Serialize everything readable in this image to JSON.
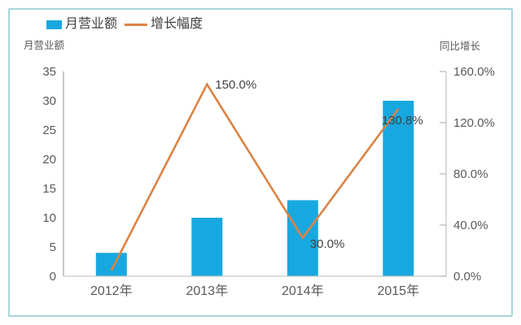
{
  "legend": {
    "items": [
      {
        "label": "月营业额",
        "swatch": "square",
        "color": "#18a8e0"
      },
      {
        "label": "增长幅度",
        "swatch": "line",
        "color": "#dc8345"
      }
    ]
  },
  "chart_data": {
    "type": "combo",
    "title": "",
    "categories": [
      "2012年",
      "2013年",
      "2014年",
      "2015年"
    ],
    "series": [
      {
        "name": "月营业额",
        "type": "bar",
        "axis": "left",
        "color": "#18a8e0",
        "values": [
          4,
          10,
          13,
          30
        ]
      },
      {
        "name": "增长幅度",
        "type": "line",
        "axis": "right",
        "color": "#dc8345",
        "values": [
          4.5,
          150.0,
          30.0,
          130.8
        ],
        "point_labels": [
          "",
          "150.0%",
          "30.0%",
          "130.8%"
        ]
      }
    ],
    "left_axis": {
      "title": "月营业额",
      "min": 0,
      "max": 35,
      "ticks": [
        {
          "label": "35",
          "value": 35
        },
        {
          "label": "30",
          "value": 30
        },
        {
          "label": "25",
          "value": 25
        },
        {
          "label": "20",
          "value": 20
        },
        {
          "label": "15",
          "value": 15
        },
        {
          "label": "10",
          "value": 10
        },
        {
          "label": "5",
          "value": 5
        },
        {
          "label": "0",
          "value": 0
        }
      ]
    },
    "right_axis": {
      "title": "同比增长",
      "min": 0,
      "max": 160,
      "ticks": [
        {
          "label": "160.0%",
          "value": 160
        },
        {
          "label": "120.0%",
          "value": 120
        },
        {
          "label": "80.0%",
          "value": 80
        },
        {
          "label": "40.0%",
          "value": 40
        },
        {
          "label": "0.0%",
          "value": 0
        }
      ]
    },
    "grid": false,
    "legend_position": "top-left"
  }
}
